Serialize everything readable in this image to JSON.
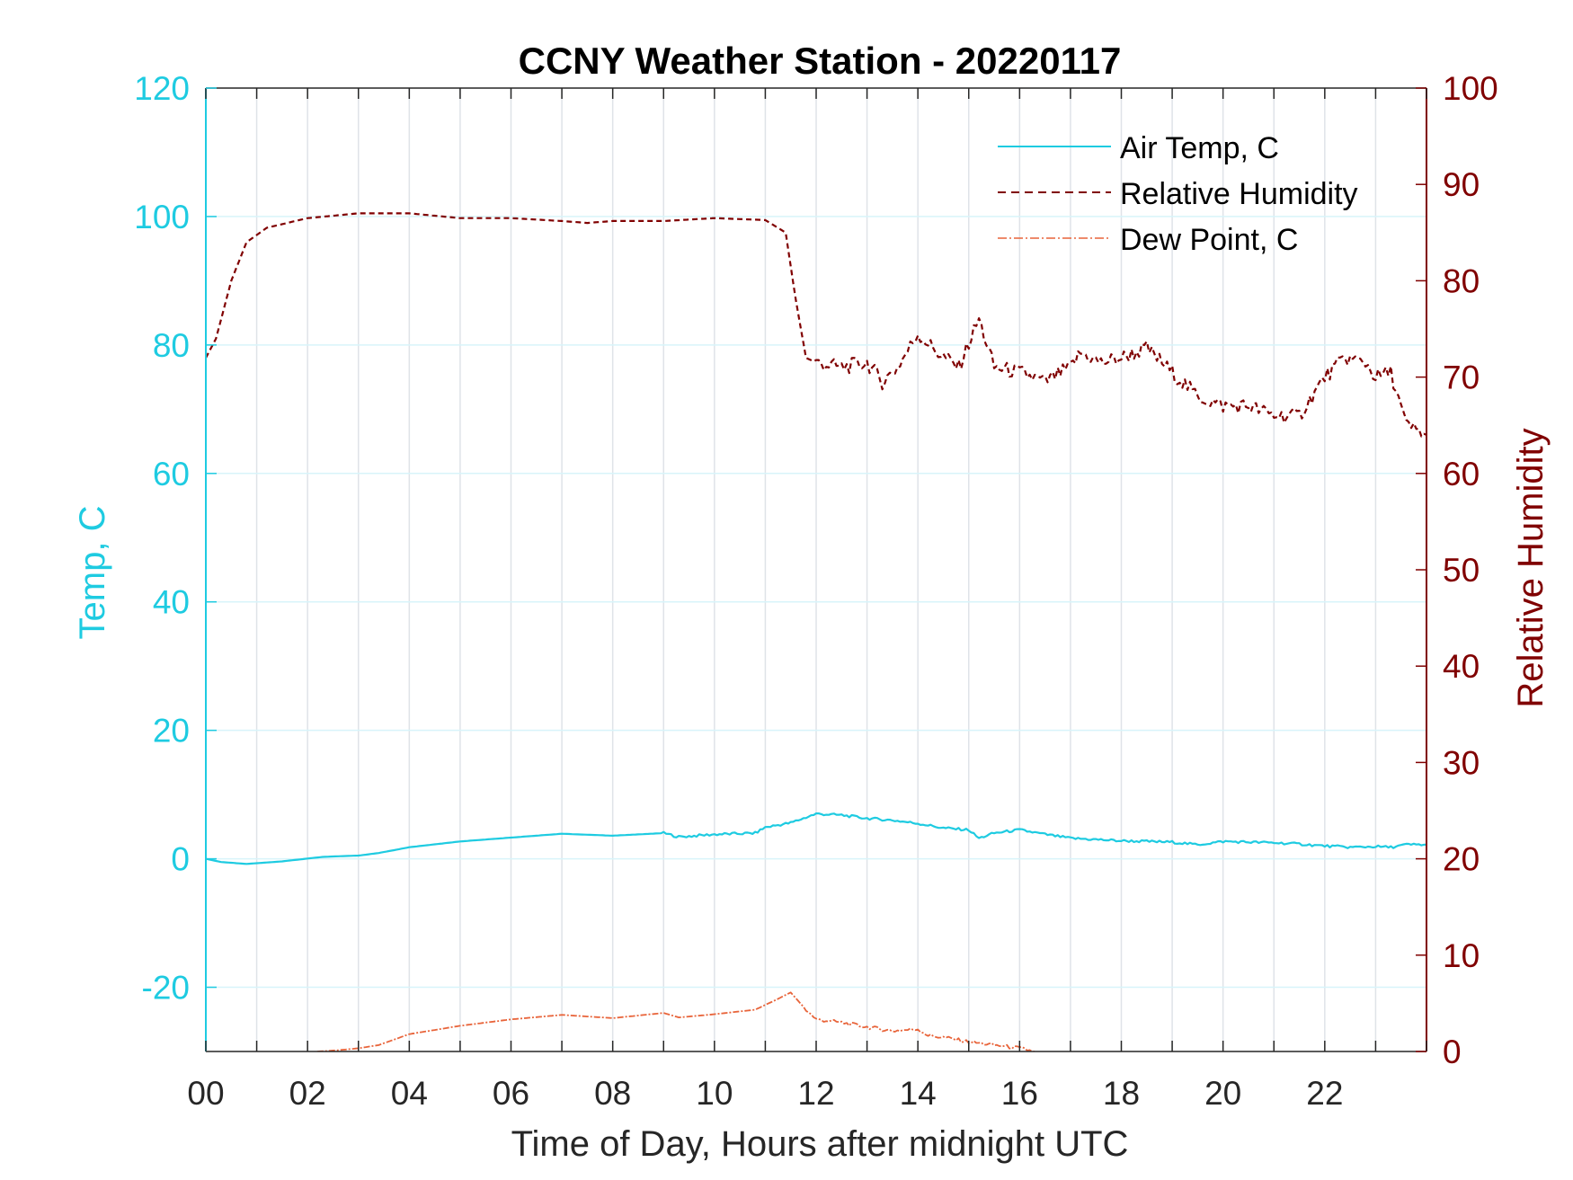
{
  "colors": {
    "temp_axis": "#1ecbe1",
    "rh_axis": "#800000",
    "air_temp": "#1ecbe1",
    "relative_humidity": "#800000",
    "dew_point": "#e8643a",
    "grid": "#dfe3e8",
    "grid_h": "#d8f4fa"
  },
  "chart_data": {
    "type": "line",
    "title": "CCNY Weather Station - 20220117",
    "xlabel": "Time of Day, Hours after midnight UTC",
    "ylabel_left": "Temp, C",
    "ylabel_right": "Relative Humidity",
    "xlim": [
      0,
      24
    ],
    "ylim_left": [
      -30,
      120
    ],
    "ylim_right": [
      0,
      100
    ],
    "x_ticks": [
      0,
      2,
      4,
      6,
      8,
      10,
      12,
      14,
      16,
      18,
      20,
      22
    ],
    "x_tick_labels": [
      "00",
      "02",
      "04",
      "06",
      "08",
      "10",
      "12",
      "14",
      "16",
      "18",
      "20",
      "22"
    ],
    "y_left_ticks": [
      -20,
      0,
      20,
      40,
      60,
      80,
      100,
      120
    ],
    "y_left_tick_labels": [
      "-20",
      "0",
      "20",
      "40",
      "60",
      "80",
      "100",
      "120"
    ],
    "y_right_ticks": [
      0,
      10,
      20,
      30,
      40,
      50,
      60,
      70,
      80,
      90,
      100
    ],
    "y_right_tick_labels": [
      "0",
      "10",
      "20",
      "30",
      "40",
      "50",
      "60",
      "70",
      "80",
      "90",
      "100"
    ],
    "grid": true,
    "legend_position": "top-right",
    "series": [
      {
        "name": "Air Temp, C",
        "axis": "left",
        "style": "solid",
        "x": [
          0,
          0.3,
          0.8,
          1.5,
          2.3,
          3.0,
          3.4,
          4.0,
          5.0,
          6.0,
          7.0,
          8.0,
          9.0,
          9.3,
          10.0,
          10.8,
          11.0,
          11.5,
          12.0,
          12.5,
          13.0,
          13.5,
          14.0,
          14.5,
          15.0,
          15.2,
          15.5,
          16.0,
          16.5,
          17.0,
          18.0,
          19.0,
          19.5,
          20.0,
          21.0,
          21.5,
          22.0,
          22.5,
          23.0,
          23.3,
          23.6,
          24.0
        ],
        "y": [
          0,
          -0.5,
          -0.8,
          -0.4,
          0.3,
          0.5,
          0.9,
          1.8,
          2.7,
          3.3,
          3.9,
          3.6,
          4.0,
          3.4,
          3.8,
          4.0,
          4.9,
          5.6,
          7.0,
          6.8,
          6.3,
          6.0,
          5.5,
          4.8,
          4.5,
          3.2,
          4.0,
          4.5,
          3.8,
          3.2,
          2.8,
          2.6,
          2.2,
          2.7,
          2.5,
          2.3,
          2.0,
          1.8,
          1.9,
          1.8,
          2.2,
          2.2
        ]
      },
      {
        "name": "Relative Humidity",
        "axis": "right",
        "style": "dashed",
        "x": [
          0,
          0.2,
          0.5,
          0.8,
          1.2,
          2.0,
          3.0,
          4.0,
          5.0,
          6.0,
          7.0,
          7.5,
          8.0,
          9.0,
          10.0,
          11.0,
          11.4,
          11.6,
          11.8,
          12.0,
          12.5,
          13.0,
          13.3,
          13.6,
          14.0,
          14.4,
          14.8,
          15.2,
          15.5,
          16.0,
          16.5,
          17.0,
          17.2,
          17.6,
          18.0,
          18.5,
          19.0,
          19.5,
          20.0,
          20.5,
          21.0,
          21.5,
          22.0,
          22.4,
          22.8,
          23.0,
          23.3,
          23.6,
          24.0
        ],
        "y": [
          72,
          74,
          80,
          84,
          85.5,
          86.5,
          87,
          87,
          86.5,
          86.5,
          86.2,
          86,
          86.2,
          86.2,
          86.5,
          86.3,
          85,
          78,
          72,
          71.5,
          71,
          71.5,
          69.5,
          71,
          74.5,
          72.5,
          71,
          76,
          71,
          70.5,
          69.5,
          71,
          72.5,
          71.5,
          72,
          73,
          70.5,
          68,
          67,
          67,
          66,
          66,
          70,
          72,
          71.5,
          70,
          70.5,
          65,
          64
        ]
      },
      {
        "name": "Dew Point, C",
        "axis": "left",
        "style": "dashdot",
        "x": [
          0,
          1.0,
          2.2,
          2.6,
          3.0,
          3.4,
          4.0,
          5.0,
          6.0,
          7.0,
          8.0,
          9.0,
          9.3,
          10.0,
          10.8,
          11.2,
          11.5,
          11.8,
          12.0,
          12.5,
          13.0,
          13.5,
          14.0,
          14.2,
          14.5,
          15.0,
          15.5,
          16.0,
          16.3
        ],
        "y": [
          -40,
          -35,
          -30,
          -29.8,
          -29.5,
          -29,
          -27.3,
          -26,
          -25,
          -24.3,
          -24.8,
          -24,
          -24.7,
          -24.2,
          -23.5,
          -22,
          -20.8,
          -23.5,
          -25,
          -25.5,
          -26.2,
          -26.8,
          -26.5,
          -27.5,
          -27.8,
          -28.5,
          -29,
          -29.5,
          -30
        ]
      }
    ]
  }
}
